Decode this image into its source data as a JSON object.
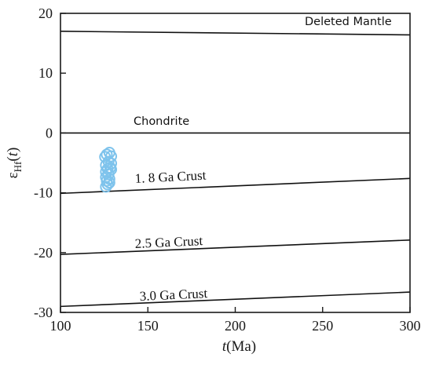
{
  "chart_data": {
    "type": "scatter",
    "xlabel": "t(Ma)",
    "ylabel": "εHf(t)",
    "xlim": [
      100,
      300
    ],
    "ylim": [
      -30,
      20
    ],
    "x_ticks": [
      "100",
      "150",
      "200",
      "250",
      "300"
    ],
    "y_ticks": [
      "20",
      "10",
      "0",
      "-10",
      "-20",
      "-30"
    ],
    "grid": false,
    "colors": {
      "points": "#7ec3ec",
      "lines": "#111111",
      "axes": "#1a1a1a"
    },
    "reference_lines": [
      {
        "label": "Deleted  Mantle",
        "x": [
          100,
          300
        ],
        "y": [
          17.0,
          16.4
        ]
      },
      {
        "label": "Chondrite",
        "x": [
          100,
          300
        ],
        "y": [
          0,
          0
        ]
      },
      {
        "label": "1. 8 Ga  Crust",
        "x": [
          100,
          300
        ],
        "y": [
          -10.1,
          -7.6
        ]
      },
      {
        "label": "2.5 Ga  Crust",
        "x": [
          100,
          300
        ],
        "y": [
          -20.3,
          -17.9
        ]
      },
      {
        "label": "3.0 Ga  Crust",
        "x": [
          100,
          300
        ],
        "y": [
          -29.0,
          -26.6
        ]
      }
    ],
    "series": [
      {
        "x": [
          125.5,
          126.5,
          128.0,
          129.0,
          127.5,
          126.0,
          128.5,
          127.0,
          126.0,
          129.0,
          127.5,
          126.0,
          128.0,
          126.5,
          128.0,
          127.0,
          126.0,
          129.0
        ],
        "y": [
          -4.0,
          -3.6,
          -3.3,
          -3.9,
          -4.8,
          -5.4,
          -5.8,
          -6.0,
          -6.5,
          -6.1,
          -6.9,
          -7.4,
          -7.7,
          -8.0,
          -8.3,
          -8.6,
          -9.0,
          -5.1
        ]
      }
    ]
  }
}
